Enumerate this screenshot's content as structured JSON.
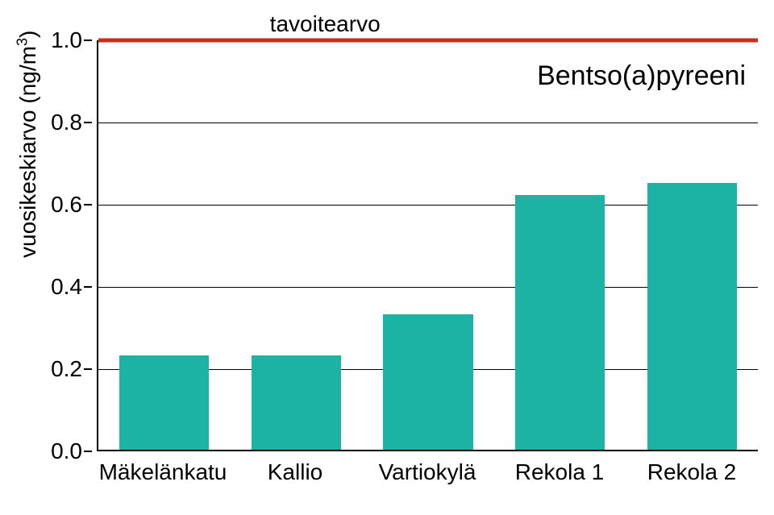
{
  "chart": {
    "type": "bar",
    "title": "Bentso(a)pyreeni",
    "y_axis_label_html": "vuosikeskiarvo (ng/m<sup>3</sup>)",
    "categories": [
      "Mäkelänkatu",
      "Kallio",
      "Vartiokylä",
      "Rekola 1",
      "Rekola 2"
    ],
    "values": [
      0.23,
      0.23,
      0.33,
      0.62,
      0.65
    ],
    "bar_color": "#1cb2a4",
    "ylim": [
      0.0,
      1.0
    ],
    "ytick_step": 0.2,
    "ytick_labels": [
      "0.0",
      "0.2",
      "0.4",
      "0.6",
      "0.8",
      "1.0"
    ],
    "gridline_color": "#000000",
    "background_color": "#ffffff",
    "axis_color": "#000000",
    "reference_line": {
      "value": 1.0,
      "label": "tavoitearvo",
      "color": "#c42f22",
      "width": 5
    },
    "title_fontsize": 34,
    "label_fontsize": 28,
    "tick_fontsize": 28,
    "bar_width": 0.68
  }
}
